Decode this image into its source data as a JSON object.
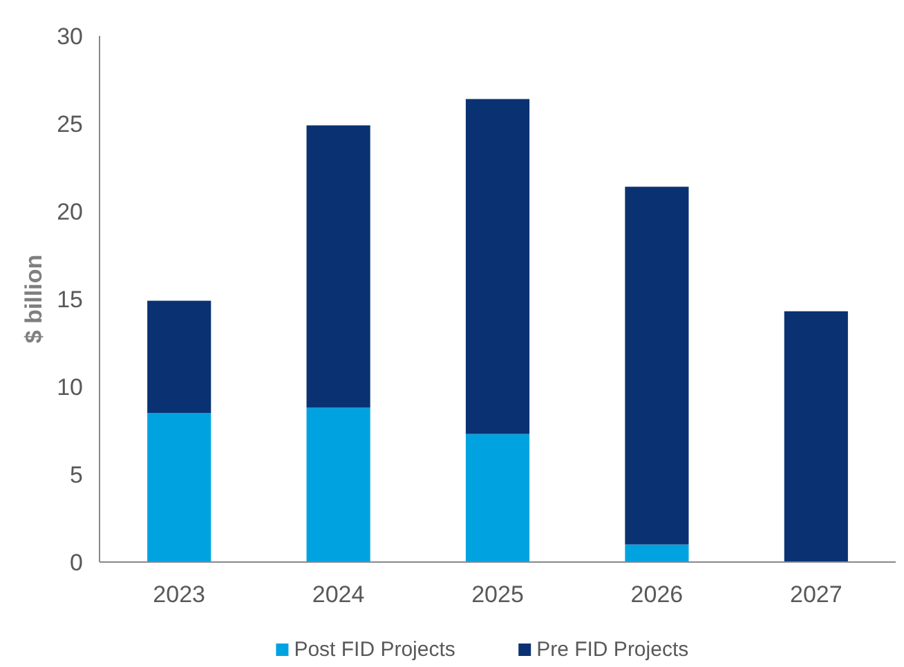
{
  "chart_data": {
    "type": "bar",
    "stacked": true,
    "ylabel": "$ billion",
    "categories": [
      "2023",
      "2024",
      "2025",
      "2026",
      "2027"
    ],
    "series": [
      {
        "name": "Post FID Projects",
        "color": "#00a3e0",
        "values": [
          8.5,
          8.8,
          7.3,
          1.0,
          0
        ]
      },
      {
        "name": "Pre FID Projects",
        "color": "#0a3272",
        "values": [
          6.4,
          16.1,
          19.1,
          20.4,
          14.3
        ]
      }
    ],
    "ylim": [
      0,
      30
    ],
    "yticks": [
      0,
      5,
      10,
      15,
      20,
      25,
      30
    ],
    "legend": "bottom"
  }
}
